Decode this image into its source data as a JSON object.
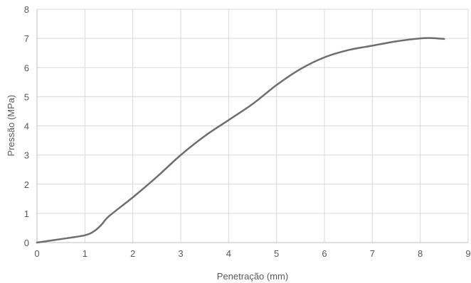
{
  "chart_data": {
    "type": "line",
    "title": "",
    "xlabel": "Penetração (mm)",
    "ylabel": "Pressão (MPa)",
    "xlim": [
      0,
      9
    ],
    "ylim": [
      0,
      8
    ],
    "xticks": [
      "0",
      "1",
      "2",
      "3",
      "4",
      "5",
      "6",
      "7",
      "8",
      "9"
    ],
    "yticks": [
      "0",
      "1",
      "2",
      "3",
      "4",
      "5",
      "6",
      "7",
      "8"
    ],
    "grid": true,
    "legend": "none",
    "series": [
      {
        "color": "#6e6e6e",
        "x": [
          0,
          0.5,
          1.0,
          1.2,
          1.35,
          1.5,
          2.0,
          2.5,
          3.0,
          3.5,
          4.0,
          4.5,
          5.0,
          5.5,
          6.0,
          6.5,
          7.0,
          7.5,
          8.0,
          8.25,
          8.5
        ],
        "y": [
          0,
          0.12,
          0.25,
          0.4,
          0.62,
          0.9,
          1.55,
          2.25,
          3.0,
          3.65,
          4.2,
          4.75,
          5.4,
          5.95,
          6.35,
          6.6,
          6.75,
          6.9,
          7.0,
          7.01,
          6.98
        ]
      }
    ]
  }
}
